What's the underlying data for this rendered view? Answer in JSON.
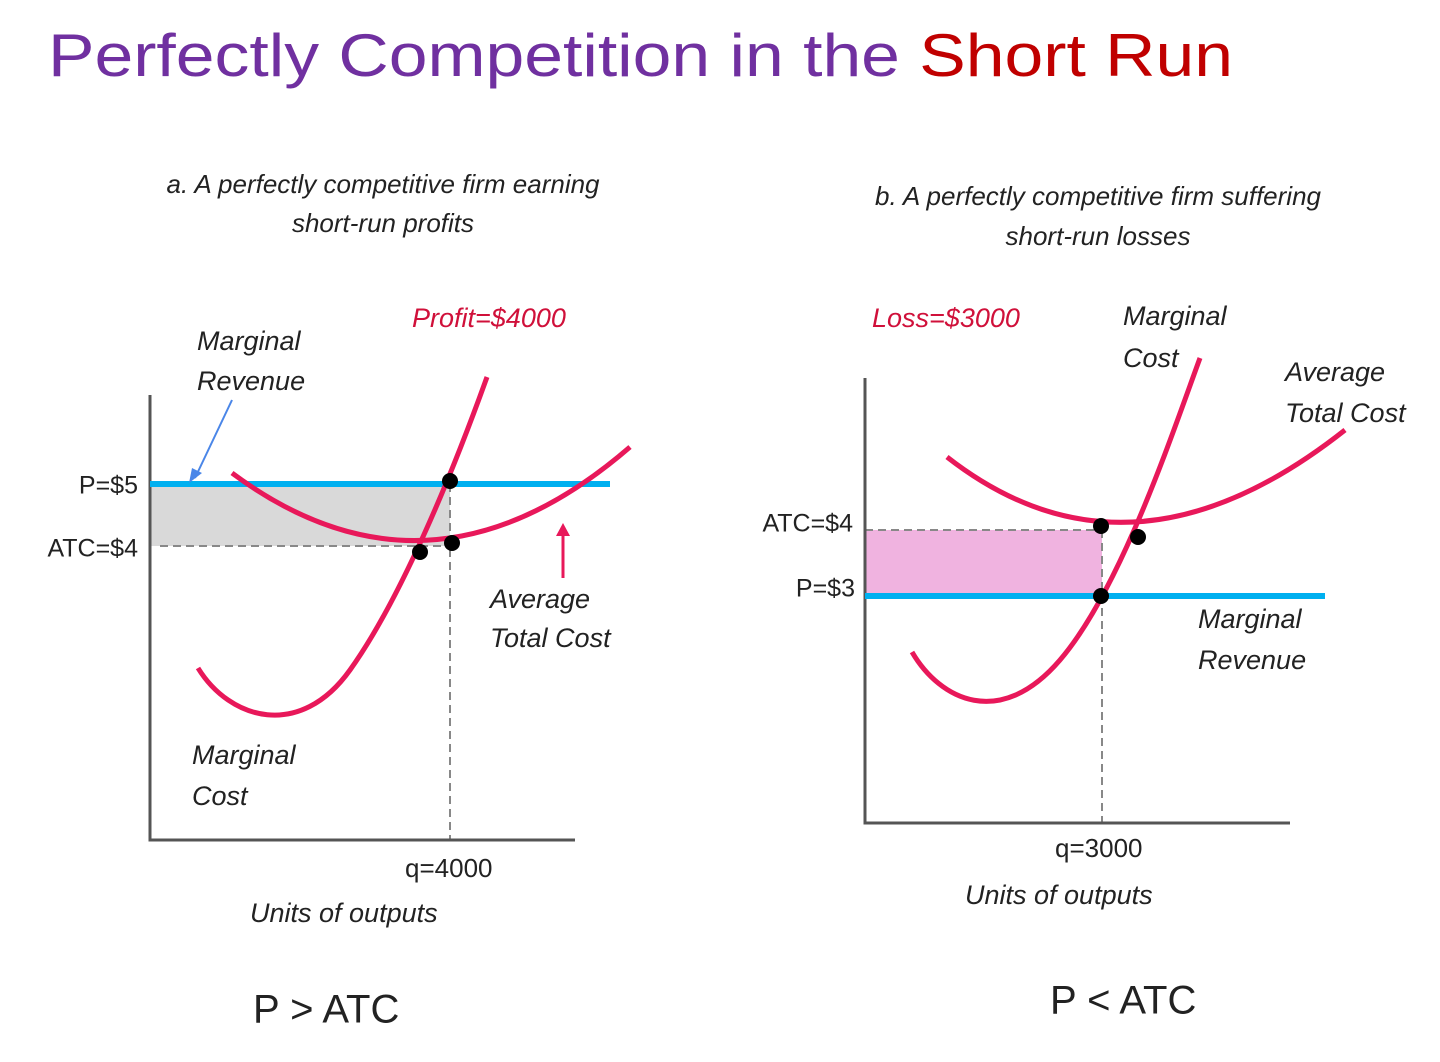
{
  "title": {
    "part1": "Perfectly Competition in the ",
    "part2": "Short Run"
  },
  "panels": [
    {
      "caption": [
        "a. A perfectly competitive firm earning",
        "short-run profits"
      ],
      "annotation": "Profit=$4000",
      "price_label": "P=$5",
      "atc_label": "ATC=$4",
      "mr_label": [
        "Marginal",
        "Revenue"
      ],
      "atc_curve_label": [
        "Average",
        "Total Cost"
      ],
      "mc_label": [
        "Marginal",
        "Cost"
      ],
      "q_label": "q=4000",
      "x_axis_label": "Units of outputs",
      "conclusion": "P > ATC"
    },
    {
      "caption": [
        "b. A perfectly competitive firm suffering",
        "short-run losses"
      ],
      "annotation": "Loss=$3000",
      "atc_label": "ATC=$4",
      "price_label": "P=$3",
      "mc_label": [
        "Marginal",
        "Cost"
      ],
      "atc_curve_label": [
        "Average",
        "Total Cost"
      ],
      "mr_label": [
        "Marginal",
        "Revenue"
      ],
      "q_label": "q=3000",
      "x_axis_label": "Units of outputs",
      "conclusion": "P < ATC"
    }
  ]
}
